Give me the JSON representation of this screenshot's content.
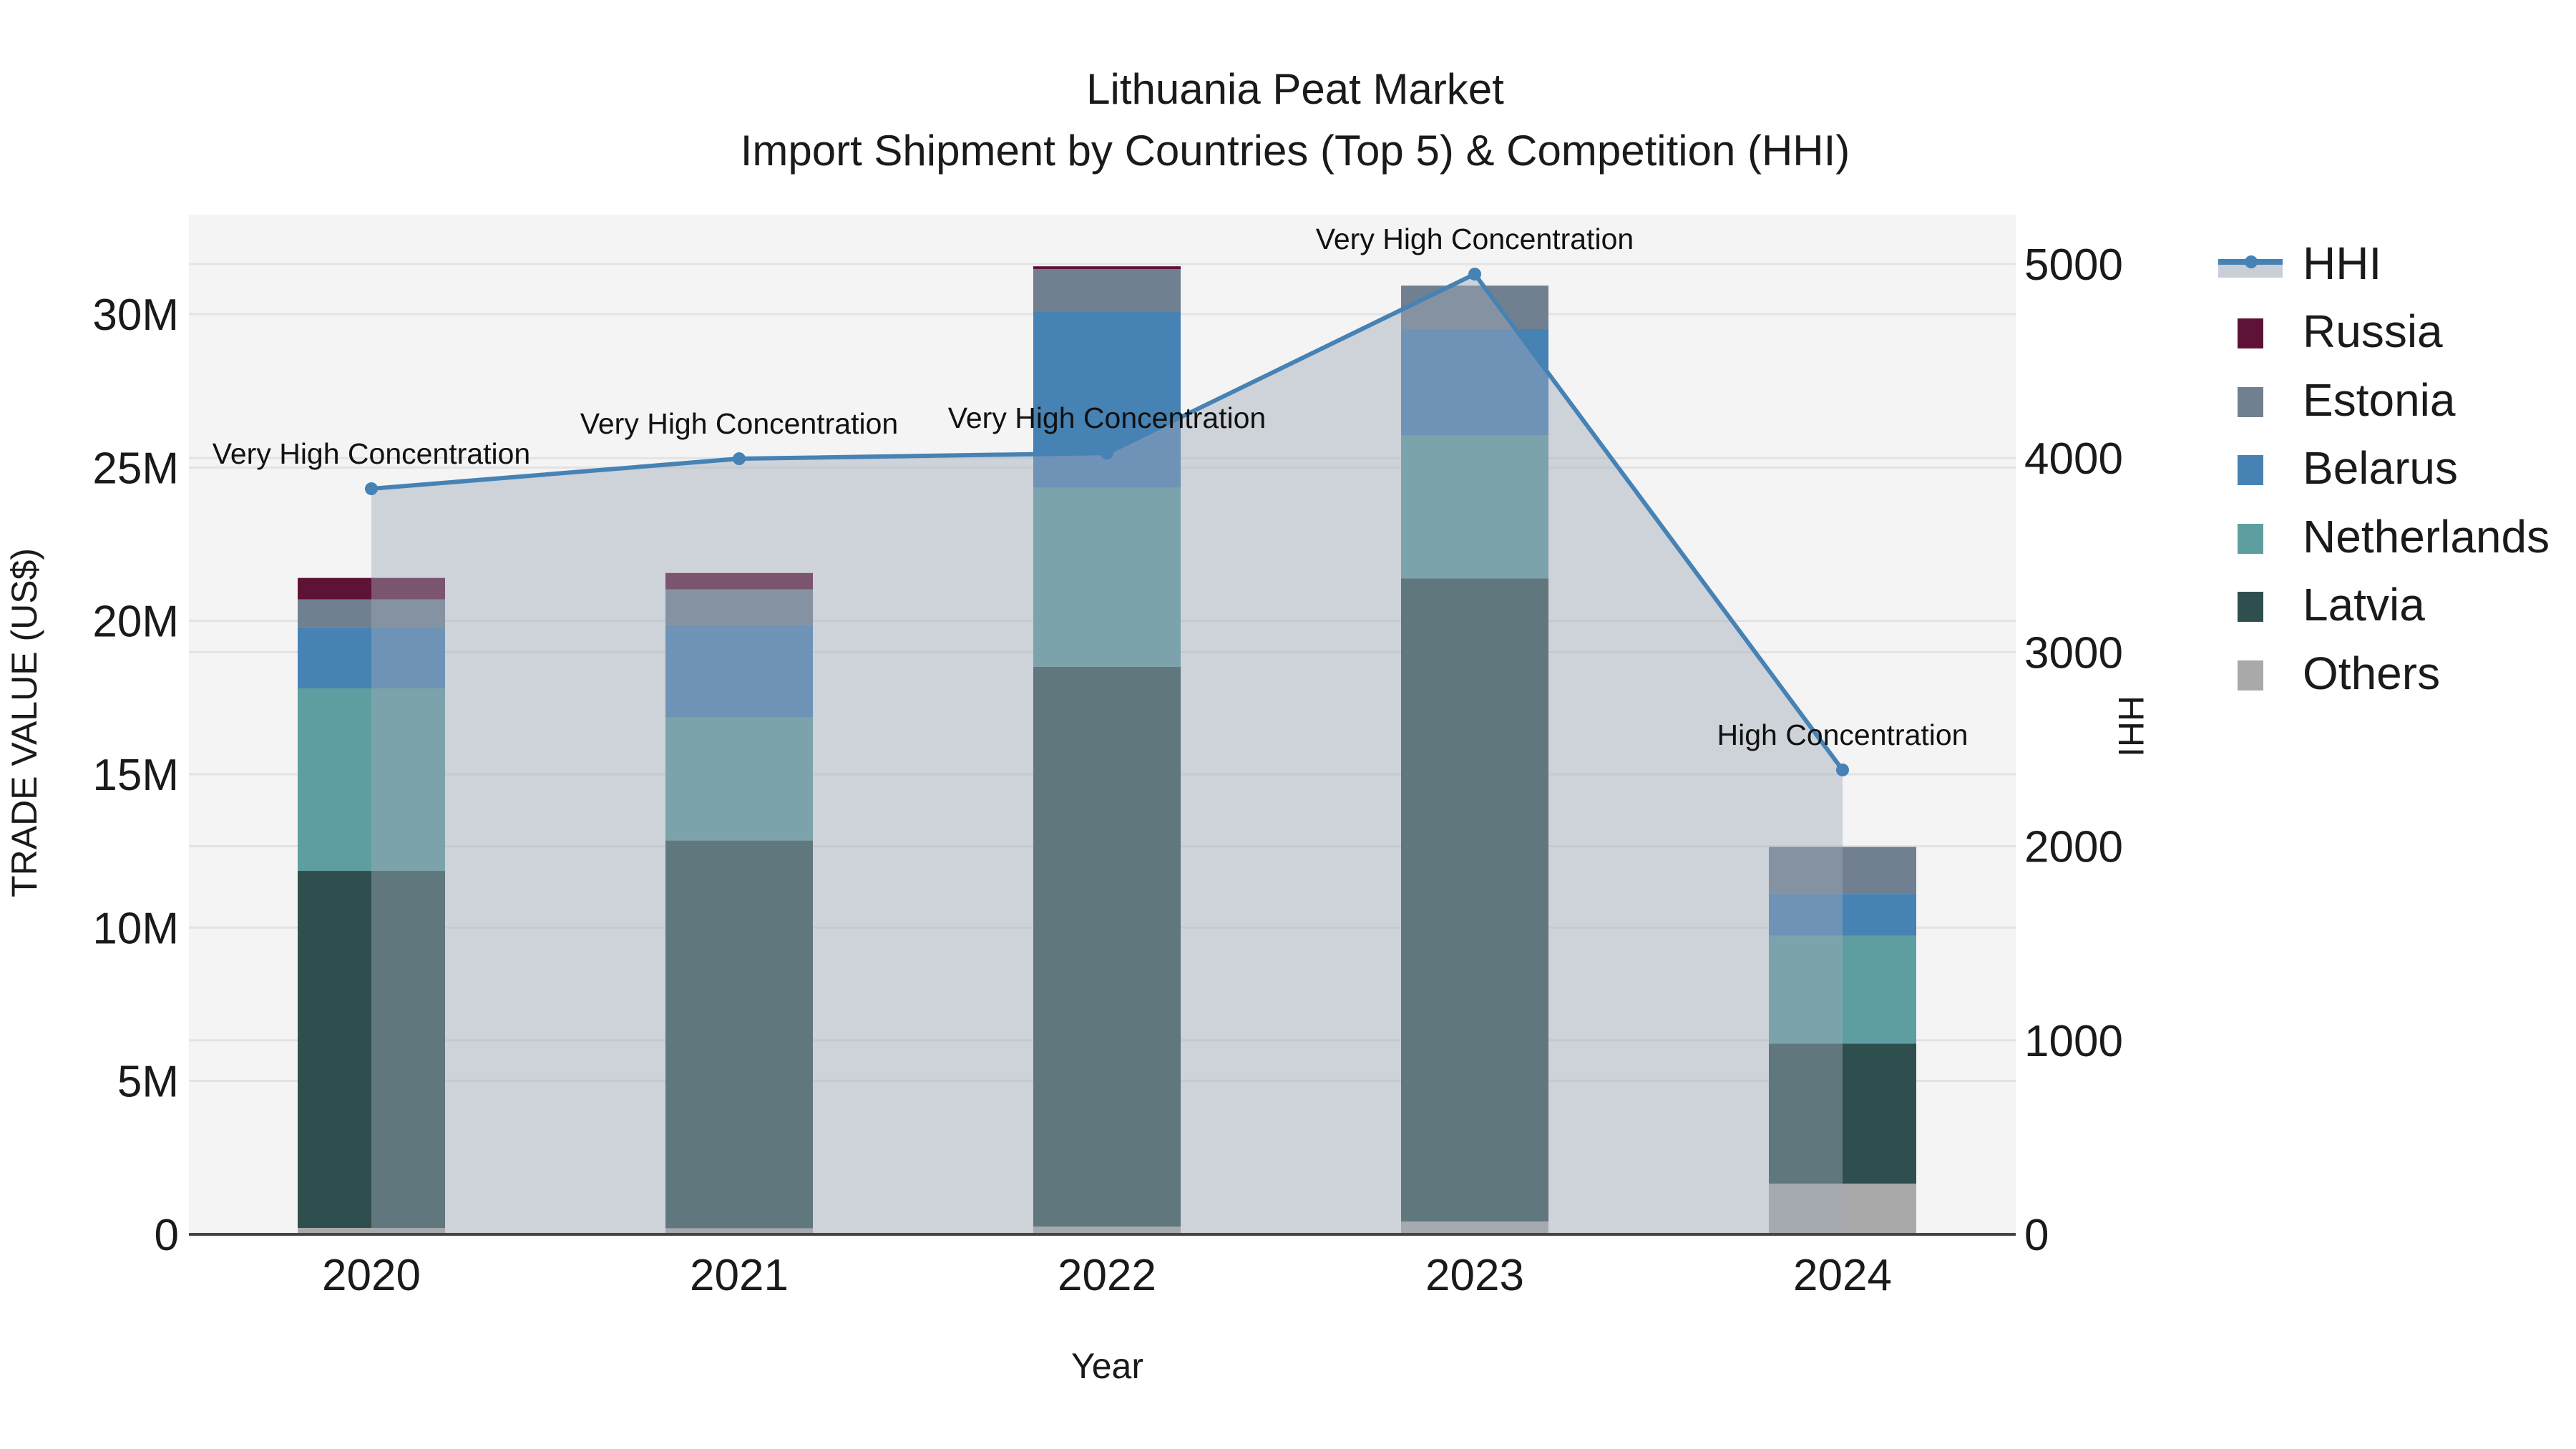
{
  "title": {
    "line1": "Lithuania Peat Market",
    "line2": "Import Shipment by Countries (Top 5) & Competition (HHI)"
  },
  "axes": {
    "x_title": "Year",
    "y_left_title": "TRADE VALUE (US$)",
    "y_right_title": "HHI",
    "y_left_ticks": [
      "0",
      "5M",
      "10M",
      "15M",
      "20M",
      "25M",
      "30M"
    ],
    "y_right_ticks": [
      "0",
      "1000",
      "2000",
      "3000",
      "4000",
      "5000"
    ]
  },
  "legend": [
    {
      "label": "HHI",
      "type": "line",
      "color": "#4682b4"
    },
    {
      "label": "Russia",
      "type": "bar",
      "color": "#5e1236"
    },
    {
      "label": "Estonia",
      "type": "bar",
      "color": "#708090"
    },
    {
      "label": "Belarus",
      "type": "bar",
      "color": "#4682b4"
    },
    {
      "label": "Netherlands",
      "type": "bar",
      "color": "#5f9ea0"
    },
    {
      "label": "Latvia",
      "type": "bar",
      "color": "#2f4f4f"
    },
    {
      "label": "Others",
      "type": "bar",
      "color": "#a9a9a9"
    }
  ],
  "chart_data": {
    "type": "bar",
    "subtype": "stacked bar with line (dual axis)",
    "title": "Lithuania Peat Market — Import Shipment by Countries (Top 5) & Competition (HHI)",
    "xlabel": "Year",
    "ylabel": "TRADE VALUE (US$)",
    "y2label": "HHI",
    "categories": [
      "2020",
      "2021",
      "2022",
      "2023",
      "2024"
    ],
    "ylim": [
      0,
      32500000
    ],
    "y2lim": [
      0,
      5250
    ],
    "grid": true,
    "legend_position": "right",
    "series": [
      {
        "name": "Others",
        "color": "#a9a9a9",
        "values": [
          210000,
          200000,
          250000,
          420000,
          1650000
        ]
      },
      {
        "name": "Latvia",
        "color": "#2f4f4f",
        "values": [
          11640000,
          12640000,
          18250000,
          20960000,
          4570000
        ]
      },
      {
        "name": "Netherlands",
        "color": "#5f9ea0",
        "values": [
          5950000,
          4010000,
          5840000,
          4660000,
          3520000
        ]
      },
      {
        "name": "Belarus",
        "color": "#4682b4",
        "values": [
          2000000,
          3010000,
          5730000,
          3470000,
          1360000
        ]
      },
      {
        "name": "Estonia",
        "color": "#708090",
        "values": [
          900000,
          1170000,
          1400000,
          1420000,
          1530000
        ]
      },
      {
        "name": "Russia",
        "color": "#5e1236",
        "values": [
          700000,
          530000,
          90000,
          0,
          0
        ]
      }
    ],
    "line_series": {
      "name": "HHI",
      "axis": "right",
      "color": "#4682b4",
      "values": [
        3842,
        3997,
        4026,
        4948,
        2393
      ],
      "annotations": [
        "Very High Concentration",
        "Very High Concentration",
        "Very High Concentration",
        "Very High Concentration",
        "High Concentration"
      ]
    }
  }
}
